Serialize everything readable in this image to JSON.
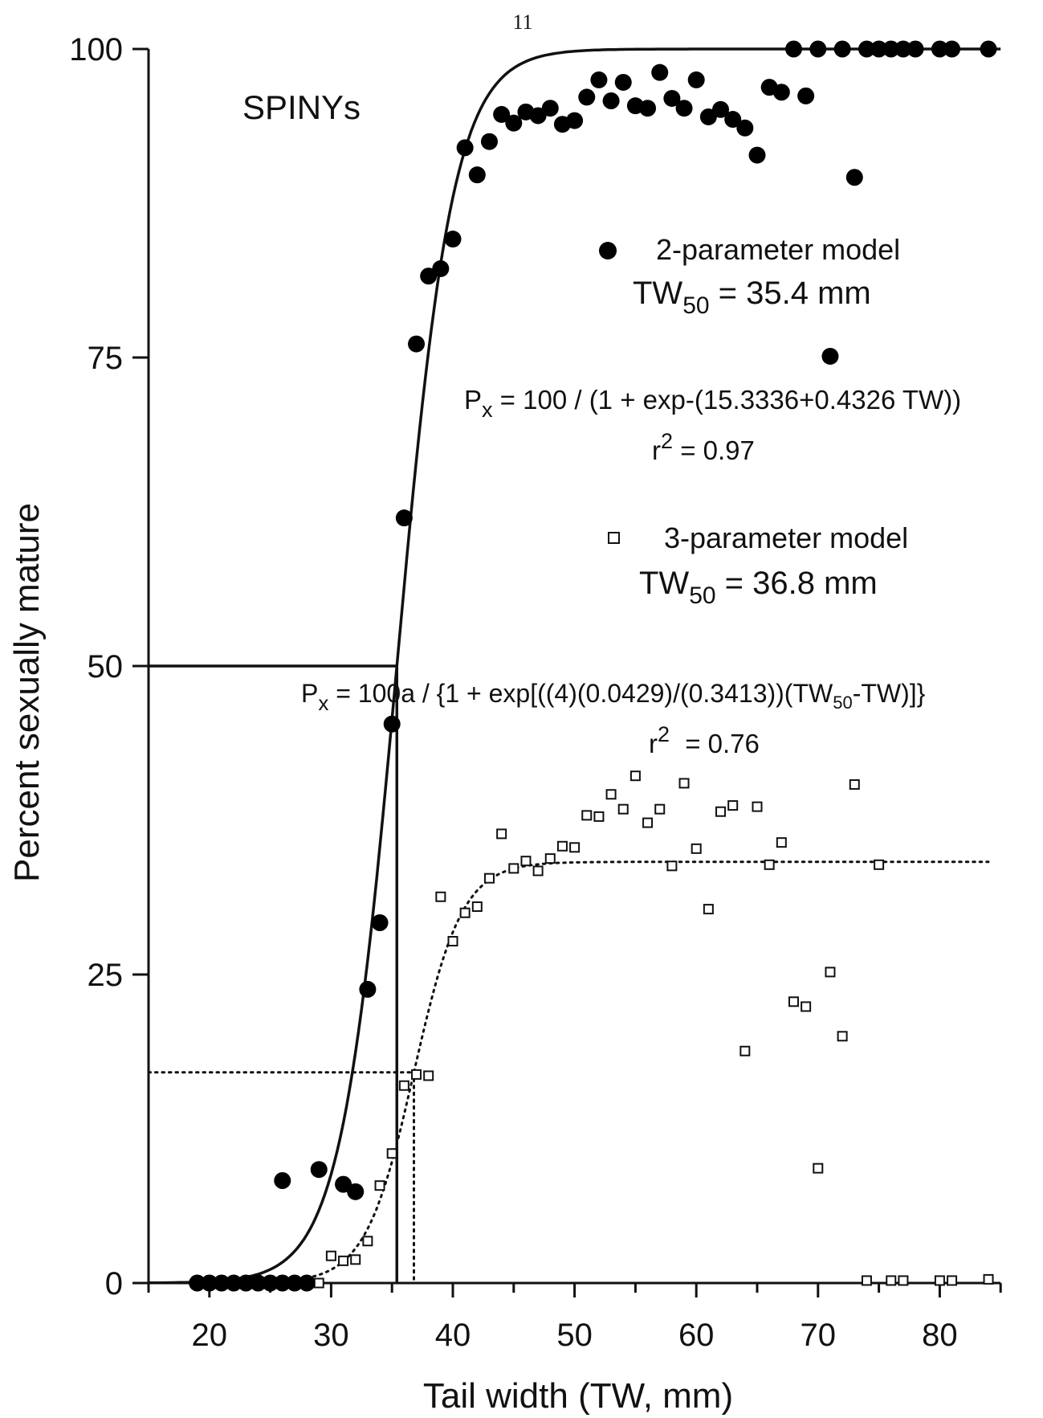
{
  "page_number": "11",
  "chart_data": {
    "type": "scatter",
    "title": "SPINYs",
    "xlabel": "Tail width (TW, mm)",
    "ylabel": "Percent sexually mature",
    "xlim": [
      15,
      85
    ],
    "ylim": [
      0,
      100
    ],
    "xticks": [
      20,
      30,
      40,
      50,
      60,
      70,
      80
    ],
    "yticks": [
      0,
      25,
      50,
      75,
      100
    ],
    "grid": false,
    "legend_position": "right",
    "series": [
      {
        "name": "2-parameter model",
        "marker": "filled-circle",
        "points": [
          [
            19,
            0
          ],
          [
            20,
            0
          ],
          [
            21,
            0
          ],
          [
            22,
            0
          ],
          [
            23,
            0
          ],
          [
            24,
            0
          ],
          [
            25,
            0
          ],
          [
            26,
            0
          ],
          [
            27,
            0
          ],
          [
            28,
            0
          ],
          [
            26,
            8.3
          ],
          [
            29,
            9.2
          ],
          [
            31,
            8
          ],
          [
            32,
            7.4
          ],
          [
            33,
            23.8
          ],
          [
            34,
            29.2
          ],
          [
            35,
            45.3
          ],
          [
            36,
            62
          ],
          [
            37,
            76.1
          ],
          [
            38,
            81.6
          ],
          [
            39,
            82.2
          ],
          [
            40,
            84.6
          ],
          [
            41,
            92
          ],
          [
            42,
            89.8
          ],
          [
            43,
            92.5
          ],
          [
            44,
            94.7
          ],
          [
            45,
            94
          ],
          [
            46,
            94.9
          ],
          [
            47,
            94.6
          ],
          [
            48,
            95.2
          ],
          [
            49,
            93.9
          ],
          [
            50,
            94.2
          ],
          [
            51,
            96.1
          ],
          [
            52,
            97.5
          ],
          [
            53,
            95.8
          ],
          [
            54,
            97.3
          ],
          [
            55,
            95.4
          ],
          [
            56,
            95.2
          ],
          [
            57,
            98.1
          ],
          [
            58,
            96
          ],
          [
            59,
            95.2
          ],
          [
            60,
            97.5
          ],
          [
            61,
            94.5
          ],
          [
            62,
            95.1
          ],
          [
            63,
            94.3
          ],
          [
            64,
            93.6
          ],
          [
            65,
            91.4
          ],
          [
            66,
            96.9
          ],
          [
            67,
            96.5
          ],
          [
            69,
            96.2
          ],
          [
            68,
            100
          ],
          [
            70,
            100
          ],
          [
            72,
            100
          ],
          [
            74,
            100
          ],
          [
            75,
            100
          ],
          [
            76,
            100
          ],
          [
            77,
            100
          ],
          [
            78,
            100
          ],
          [
            80,
            100
          ],
          [
            81,
            100
          ],
          [
            84,
            100
          ],
          [
            71,
            75.1
          ],
          [
            73,
            89.6
          ]
        ],
        "annotation": {
          "tw50": "TW",
          "tw50_sub": "50",
          "tw50_value": " = 35.4 mm",
          "eq_p": "P",
          "eq_sub": "x",
          "equation": " = 100 / (1 + exp-(15.3336+0.4326 TW))",
          "r2_r": "r",
          "r2_sup": "2",
          "r2_value": " = 0.97"
        }
      },
      {
        "name": "3-parameter model",
        "marker": "open-square",
        "points": [
          [
            19,
            0
          ],
          [
            20,
            0
          ],
          [
            21,
            0
          ],
          [
            22,
            0
          ],
          [
            23,
            0
          ],
          [
            24,
            0
          ],
          [
            25,
            0
          ],
          [
            26,
            0
          ],
          [
            27,
            0
          ],
          [
            28,
            0
          ],
          [
            29,
            0
          ],
          [
            30,
            2.2
          ],
          [
            31,
            1.8
          ],
          [
            32,
            1.9
          ],
          [
            33,
            3.4
          ],
          [
            34,
            7.9
          ],
          [
            35,
            10.5
          ],
          [
            36,
            16
          ],
          [
            37,
            16.9
          ],
          [
            38,
            16.8
          ],
          [
            39,
            31.3
          ],
          [
            40,
            27.7
          ],
          [
            41,
            30
          ],
          [
            42,
            30.5
          ],
          [
            43,
            32.8
          ],
          [
            44,
            36.4
          ],
          [
            45,
            33.6
          ],
          [
            46,
            34.2
          ],
          [
            47,
            33.4
          ],
          [
            48,
            34.4
          ],
          [
            49,
            35.4
          ],
          [
            50,
            35.3
          ],
          [
            51,
            37.9
          ],
          [
            52,
            37.8
          ],
          [
            53,
            39.6
          ],
          [
            54,
            38.4
          ],
          [
            55,
            41.1
          ],
          [
            56,
            37.3
          ],
          [
            57,
            38.4
          ],
          [
            58,
            33.8
          ],
          [
            59,
            40.5
          ],
          [
            60,
            35.2
          ],
          [
            61,
            30.3
          ],
          [
            62,
            38.2
          ],
          [
            63,
            38.7
          ],
          [
            64,
            18.8
          ],
          [
            65,
            38.6
          ],
          [
            66,
            33.9
          ],
          [
            67,
            35.7
          ],
          [
            68,
            22.8
          ],
          [
            69,
            22.4
          ],
          [
            70,
            9.3
          ],
          [
            71,
            25.2
          ],
          [
            72,
            20
          ],
          [
            73,
            40.4
          ],
          [
            74,
            0.2
          ],
          [
            75,
            33.9
          ],
          [
            76,
            0.2
          ],
          [
            77,
            0.2
          ],
          [
            80,
            0.2
          ],
          [
            81,
            0.2
          ],
          [
            84,
            0.3
          ]
        ],
        "annotation": {
          "tw50": "TW",
          "tw50_sub": "50",
          "tw50_value": " = 36.8 mm",
          "eq_p": "P",
          "eq_sub": "x",
          "equation_a": " = 100a / {1 + exp[((4)(0.0429)/(0.3413))(TW",
          "equation_sub": "50",
          "equation_b": "-TW)]}",
          "r2_r": "r",
          "r2_sup": "2",
          "r2_value": " = 0.76"
        }
      }
    ],
    "fitted_curves": [
      {
        "model": "2-parameter model",
        "style": "solid",
        "form": "logistic",
        "asymptote": 100,
        "midpoint": 35.4,
        "slope": 0.4326,
        "x_range": [
          15,
          85
        ]
      },
      {
        "model": "3-parameter model",
        "style": "dotted",
        "form": "logistic",
        "asymptote": 34.13,
        "midpoint": 36.8,
        "slope": 0.5028,
        "x_range": [
          28,
          84
        ]
      }
    ],
    "reference_lines": [
      {
        "model": "2-parameter model",
        "style": "solid",
        "x": 35.4,
        "y": 50
      },
      {
        "model": "3-parameter model",
        "style": "dotted",
        "x": 36.8,
        "y": 17.07
      }
    ]
  }
}
